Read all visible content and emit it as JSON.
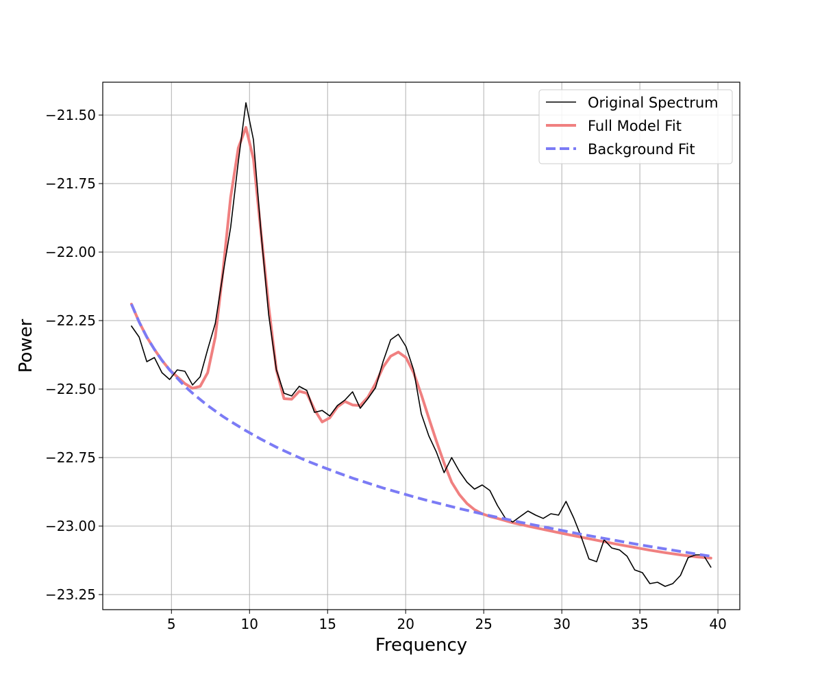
{
  "chart_data": {
    "type": "line",
    "title": "",
    "xlabel": "Frequency",
    "ylabel": "Power",
    "xlim": [
      0.6,
      41.4
    ],
    "ylim": [
      -23.305,
      -21.38
    ],
    "xticks": [
      5,
      10,
      15,
      20,
      25,
      30,
      35,
      40
    ],
    "yticks": [
      -23.25,
      -23.0,
      -22.75,
      -22.5,
      -22.25,
      -22.0,
      -21.75,
      -21.5
    ],
    "xtick_labels": [
      "5",
      "10",
      "15",
      "20",
      "25",
      "30",
      "35",
      "40"
    ],
    "ytick_labels": [
      "−23.25",
      "−23.00",
      "−22.75",
      "−22.50",
      "−22.25",
      "−22.00",
      "−21.75",
      "−21.50"
    ],
    "grid": true,
    "legend": "upper-right",
    "series": [
      {
        "name": "Original Spectrum",
        "color": "#000000",
        "style": "solid",
        "points": [
          [
            2.44,
            -22.27
          ],
          [
            2.93,
            -22.31
          ],
          [
            3.42,
            -22.4
          ],
          [
            3.91,
            -22.385
          ],
          [
            4.39,
            -22.44
          ],
          [
            4.88,
            -22.465
          ],
          [
            5.37,
            -22.43
          ],
          [
            5.86,
            -22.435
          ],
          [
            6.35,
            -22.485
          ],
          [
            6.84,
            -22.455
          ],
          [
            7.32,
            -22.355
          ],
          [
            7.81,
            -22.26
          ],
          [
            8.3,
            -22.08
          ],
          [
            8.79,
            -21.91
          ],
          [
            9.28,
            -21.67
          ],
          [
            9.77,
            -21.455
          ],
          [
            10.25,
            -21.59
          ],
          [
            10.74,
            -21.93
          ],
          [
            11.23,
            -22.23
          ],
          [
            11.72,
            -22.43
          ],
          [
            12.21,
            -22.515
          ],
          [
            12.7,
            -22.525
          ],
          [
            13.18,
            -22.49
          ],
          [
            13.67,
            -22.505
          ],
          [
            14.16,
            -22.585
          ],
          [
            14.65,
            -22.578
          ],
          [
            15.14,
            -22.598
          ],
          [
            15.63,
            -22.56
          ],
          [
            16.11,
            -22.54
          ],
          [
            16.6,
            -22.51
          ],
          [
            17.09,
            -22.57
          ],
          [
            17.58,
            -22.535
          ],
          [
            18.07,
            -22.495
          ],
          [
            18.55,
            -22.4
          ],
          [
            19.04,
            -22.32
          ],
          [
            19.53,
            -22.3
          ],
          [
            20.02,
            -22.345
          ],
          [
            20.51,
            -22.43
          ],
          [
            21.0,
            -22.59
          ],
          [
            21.48,
            -22.67
          ],
          [
            21.97,
            -22.73
          ],
          [
            22.46,
            -22.805
          ],
          [
            22.95,
            -22.75
          ],
          [
            23.44,
            -22.8
          ],
          [
            23.93,
            -22.84
          ],
          [
            24.41,
            -22.865
          ],
          [
            24.9,
            -22.85
          ],
          [
            25.39,
            -22.87
          ],
          [
            25.88,
            -22.925
          ],
          [
            26.37,
            -22.97
          ],
          [
            26.86,
            -22.985
          ],
          [
            27.34,
            -22.965
          ],
          [
            27.83,
            -22.945
          ],
          [
            28.32,
            -22.96
          ],
          [
            28.81,
            -22.972
          ],
          [
            29.3,
            -22.955
          ],
          [
            29.79,
            -22.96
          ],
          [
            30.27,
            -22.91
          ],
          [
            30.76,
            -22.97
          ],
          [
            31.25,
            -23.04
          ],
          [
            31.74,
            -23.12
          ],
          [
            32.23,
            -23.13
          ],
          [
            32.71,
            -23.05
          ],
          [
            33.2,
            -23.08
          ],
          [
            33.69,
            -23.087
          ],
          [
            34.18,
            -23.11
          ],
          [
            34.67,
            -23.16
          ],
          [
            35.16,
            -23.17
          ],
          [
            35.64,
            -23.21
          ],
          [
            36.13,
            -23.205
          ],
          [
            36.62,
            -23.22
          ],
          [
            37.11,
            -23.21
          ],
          [
            37.6,
            -23.18
          ],
          [
            38.09,
            -23.115
          ],
          [
            38.57,
            -23.105
          ],
          [
            39.06,
            -23.105
          ],
          [
            39.55,
            -23.15
          ]
        ]
      },
      {
        "name": "Full Model Fit",
        "color": "#f08080",
        "style": "solid",
        "points": [
          [
            2.44,
            -22.19
          ],
          [
            2.93,
            -22.255
          ],
          [
            3.42,
            -22.31
          ],
          [
            3.91,
            -22.355
          ],
          [
            4.39,
            -22.395
          ],
          [
            4.88,
            -22.43
          ],
          [
            5.37,
            -22.455
          ],
          [
            5.86,
            -22.48
          ],
          [
            6.35,
            -22.497
          ],
          [
            6.84,
            -22.49
          ],
          [
            7.32,
            -22.44
          ],
          [
            7.81,
            -22.31
          ],
          [
            8.3,
            -22.07
          ],
          [
            8.79,
            -21.8
          ],
          [
            9.28,
            -21.62
          ],
          [
            9.77,
            -21.545
          ],
          [
            10.25,
            -21.66
          ],
          [
            10.74,
            -21.93
          ],
          [
            11.23,
            -22.2
          ],
          [
            11.72,
            -22.43
          ],
          [
            12.21,
            -22.535
          ],
          [
            12.7,
            -22.537
          ],
          [
            13.18,
            -22.508
          ],
          [
            13.67,
            -22.515
          ],
          [
            14.16,
            -22.575
          ],
          [
            14.65,
            -22.62
          ],
          [
            15.14,
            -22.605
          ],
          [
            15.63,
            -22.565
          ],
          [
            16.11,
            -22.545
          ],
          [
            16.6,
            -22.558
          ],
          [
            17.09,
            -22.56
          ],
          [
            17.58,
            -22.53
          ],
          [
            18.07,
            -22.48
          ],
          [
            18.55,
            -22.42
          ],
          [
            19.04,
            -22.38
          ],
          [
            19.53,
            -22.365
          ],
          [
            20.02,
            -22.385
          ],
          [
            20.51,
            -22.44
          ],
          [
            21.0,
            -22.52
          ],
          [
            21.48,
            -22.605
          ],
          [
            21.97,
            -22.69
          ],
          [
            22.46,
            -22.77
          ],
          [
            22.95,
            -22.84
          ],
          [
            23.44,
            -22.885
          ],
          [
            23.93,
            -22.918
          ],
          [
            24.41,
            -22.94
          ],
          [
            24.9,
            -22.955
          ],
          [
            25.39,
            -22.965
          ],
          [
            25.88,
            -22.972
          ],
          [
            26.37,
            -22.98
          ],
          [
            26.86,
            -22.988
          ],
          [
            27.83,
            -23.0
          ],
          [
            28.81,
            -23.012
          ],
          [
            29.79,
            -23.024
          ],
          [
            30.76,
            -23.035
          ],
          [
            31.74,
            -23.046
          ],
          [
            32.71,
            -23.057
          ],
          [
            33.69,
            -23.068
          ],
          [
            34.67,
            -23.078
          ],
          [
            35.64,
            -23.088
          ],
          [
            36.62,
            -23.097
          ],
          [
            37.6,
            -23.105
          ],
          [
            38.57,
            -23.112
          ],
          [
            39.55,
            -23.117
          ]
        ]
      },
      {
        "name": "Background Fit",
        "color": "#7b7bf5",
        "style": "dashed",
        "points": [
          [
            2.44,
            -22.19
          ],
          [
            2.93,
            -22.255
          ],
          [
            3.42,
            -22.31
          ],
          [
            3.91,
            -22.355
          ],
          [
            4.39,
            -22.395
          ],
          [
            4.88,
            -22.43
          ],
          [
            5.37,
            -22.46
          ],
          [
            5.86,
            -22.49
          ],
          [
            6.35,
            -22.515
          ],
          [
            6.84,
            -22.538
          ],
          [
            7.32,
            -22.56
          ],
          [
            7.81,
            -22.58
          ],
          [
            8.3,
            -22.6
          ],
          [
            8.79,
            -22.618
          ],
          [
            9.28,
            -22.635
          ],
          [
            9.77,
            -22.652
          ],
          [
            10.74,
            -22.683
          ],
          [
            11.72,
            -22.712
          ],
          [
            12.7,
            -22.738
          ],
          [
            13.67,
            -22.762
          ],
          [
            14.65,
            -22.784
          ],
          [
            15.63,
            -22.805
          ],
          [
            16.6,
            -22.825
          ],
          [
            17.58,
            -22.843
          ],
          [
            18.55,
            -22.861
          ],
          [
            19.53,
            -22.877
          ],
          [
            20.51,
            -22.893
          ],
          [
            21.48,
            -22.908
          ],
          [
            22.46,
            -22.922
          ],
          [
            23.44,
            -22.936
          ],
          [
            24.41,
            -22.949
          ],
          [
            25.39,
            -22.962
          ],
          [
            26.37,
            -22.974
          ],
          [
            27.34,
            -22.986
          ],
          [
            28.32,
            -22.997
          ],
          [
            29.3,
            -23.008
          ],
          [
            30.27,
            -23.019
          ],
          [
            31.25,
            -23.03
          ],
          [
            32.23,
            -23.04
          ],
          [
            33.2,
            -23.05
          ],
          [
            34.18,
            -23.06
          ],
          [
            35.16,
            -23.07
          ],
          [
            36.13,
            -23.079
          ],
          [
            37.11,
            -23.088
          ],
          [
            38.09,
            -23.097
          ],
          [
            39.06,
            -23.106
          ],
          [
            39.55,
            -23.11
          ]
        ]
      }
    ]
  }
}
